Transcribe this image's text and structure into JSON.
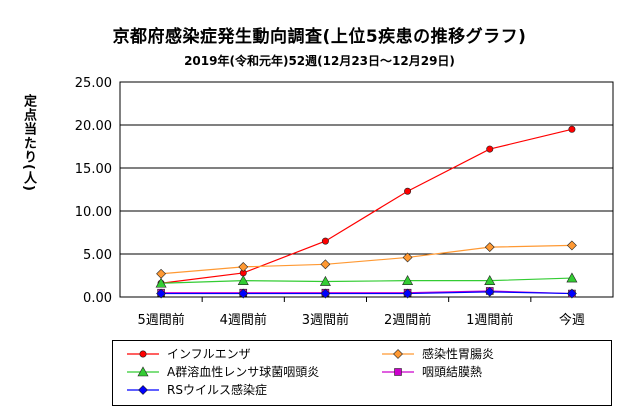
{
  "chart_data": {
    "type": "line",
    "title": "京都府感染症発生動向調査(上位5疾患の推移グラフ)",
    "subtitle": "2019年(令和元年)52週(12月23日～12月29日)",
    "ylabel": "定点当たり(人)",
    "xlabel": "",
    "categories": [
      "5週間前",
      "4週間前",
      "3週間前",
      "2週間前",
      "1週間前",
      "今週"
    ],
    "ylim": [
      0,
      25
    ],
    "yticks": [
      "0.00",
      "5.00",
      "10.00",
      "15.00",
      "20.00",
      "25.00"
    ],
    "grid": "horizontal",
    "legend_position": "bottom",
    "series": [
      {
        "name": "インフルエンザ",
        "values": [
          1.6,
          2.8,
          6.5,
          12.3,
          17.2,
          19.5
        ],
        "color": "#ff0000",
        "marker": "circle"
      },
      {
        "name": "感染性胃腸炎",
        "values": [
          2.7,
          3.5,
          3.8,
          4.6,
          5.8,
          6.0
        ],
        "color": "#ff9933",
        "marker": "diamond"
      },
      {
        "name": "A群溶血性レンサ球菌咽頭炎",
        "values": [
          1.6,
          1.9,
          1.8,
          1.9,
          1.9,
          2.2
        ],
        "color": "#33cc33",
        "marker": "triangle"
      },
      {
        "name": "咽頭結膜熱",
        "values": [
          0.5,
          0.5,
          0.5,
          0.5,
          0.7,
          0.4
        ],
        "color": "#cc00cc",
        "marker": "square"
      },
      {
        "name": "RSウイルス感染症",
        "values": [
          0.4,
          0.4,
          0.4,
          0.4,
          0.6,
          0.4
        ],
        "color": "#0000ff",
        "marker": "diamond"
      }
    ]
  }
}
